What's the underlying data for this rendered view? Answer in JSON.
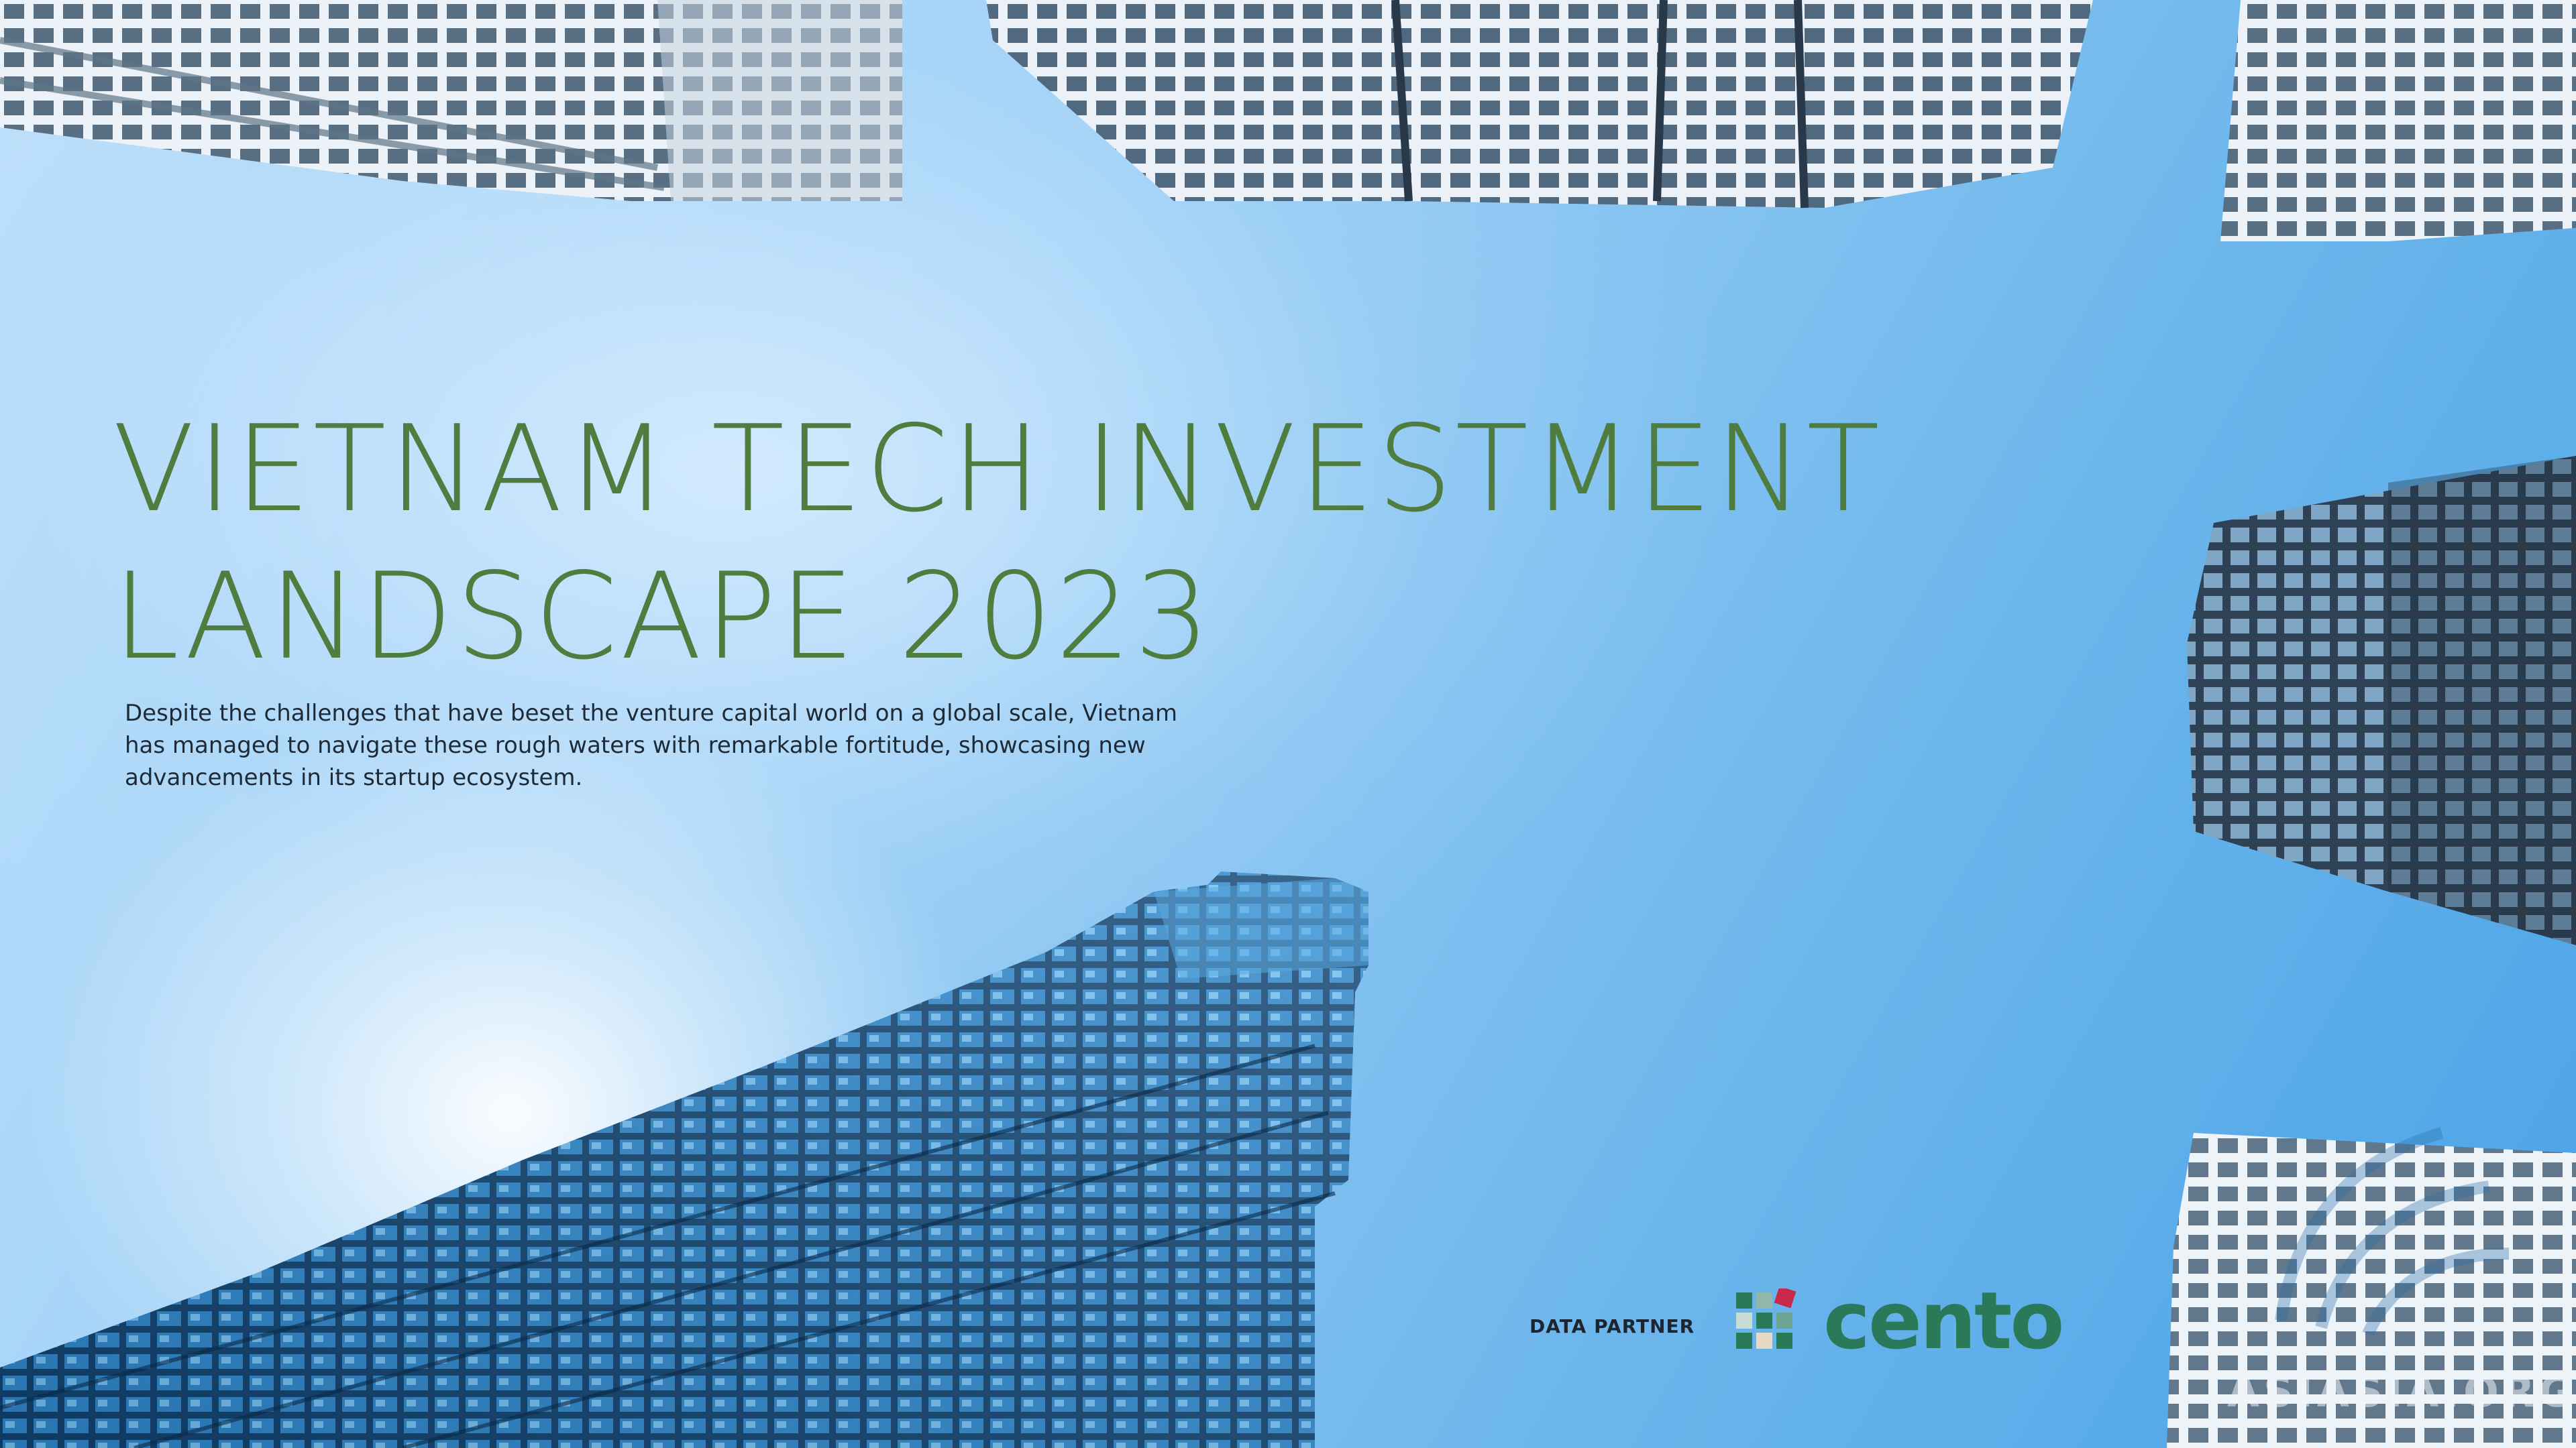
{
  "cover": {
    "title_line_1": "VIETNAM TECH INVESTMENT",
    "title_line_2": "LANDSCAPE 2023",
    "intro": "Despite the challenges that have beset the venture capital world on a global scale, Vietnam has managed to navigate these rough waters with remarkable fortitude, showcasing new advancements in its startup ecosystem."
  },
  "partner": {
    "label": "DATA PARTNER",
    "logo_text": "cento",
    "logo_color": "#2a7a5a"
  },
  "watermark": {
    "text": "ASIASIA.ORG"
  },
  "colors": {
    "title": "#4f7d3f",
    "sky": "#6fb3ea"
  }
}
